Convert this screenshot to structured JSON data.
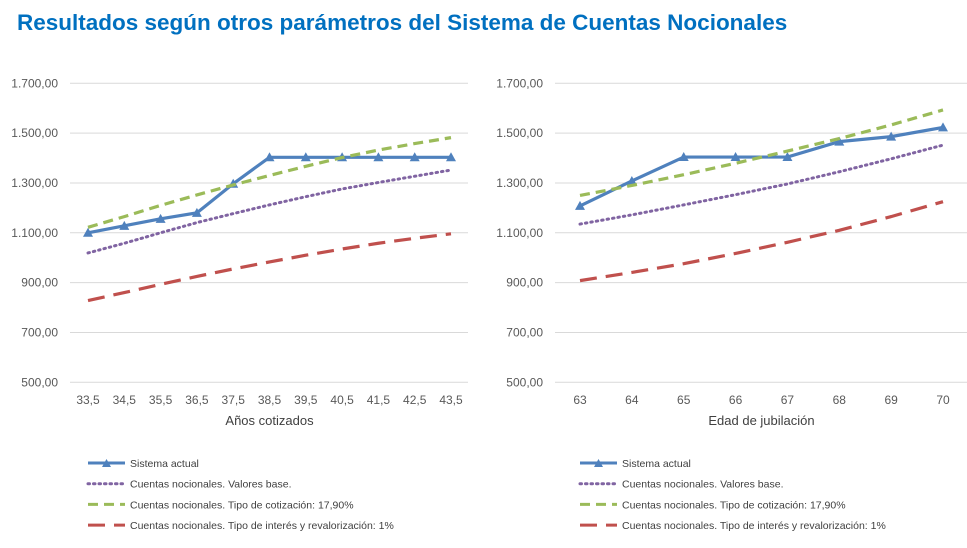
{
  "title": "Resultados según otros parámetros del Sistema de Cuentas Nocionales",
  "chart_data": [
    {
      "type": "line",
      "xlabel": "Años cotizados",
      "ylabel": "",
      "categories": [
        "33,5",
        "34,5",
        "35,5",
        "36,5",
        "37,5",
        "38,5",
        "39,5",
        "40,5",
        "41,5",
        "42,5",
        "43,5"
      ],
      "ylim": [
        500,
        1700
      ],
      "yticks": [
        "500,00",
        "700,00",
        "900,00",
        "1.100,00",
        "1.300,00",
        "1.500,00",
        "1.700,00"
      ],
      "grid": true,
      "legend_position": "bottom",
      "series": [
        {
          "name": "Sistema actual",
          "color": "#4F81BD",
          "style": "solid-triangle",
          "values": [
            1100,
            1128,
            1156,
            1180,
            1297,
            1403,
            1403,
            1403,
            1403,
            1403,
            1403
          ]
        },
        {
          "name": "Cuentas nocionales. Valores base.",
          "color": "#8064A2",
          "style": "dotted",
          "values": [
            1019,
            1058,
            1100,
            1141,
            1177,
            1212,
            1245,
            1276,
            1302,
            1327,
            1352
          ]
        },
        {
          "name": "Cuentas nocionales. Tipo de cotización: 17,90%",
          "color": "#9BBB59",
          "style": "dashed",
          "values": [
            1122,
            1165,
            1210,
            1252,
            1292,
            1330,
            1367,
            1402,
            1432,
            1458,
            1482
          ]
        },
        {
          "name": "Cuentas nocionales. Tipo de interés y revalorización: 1%",
          "color": "#C0504D",
          "style": "long-dashed",
          "values": [
            828,
            860,
            893,
            925,
            955,
            983,
            1010,
            1035,
            1058,
            1078,
            1096
          ]
        }
      ]
    },
    {
      "type": "line",
      "xlabel": "Edad de jubilación",
      "ylabel": "",
      "categories": [
        "63",
        "64",
        "65",
        "66",
        "67",
        "68",
        "69",
        "70"
      ],
      "ylim": [
        500,
        1700
      ],
      "yticks": [
        "500,00",
        "700,00",
        "900,00",
        "1.100,00",
        "1.300,00",
        "1.500,00",
        "1.700,00"
      ],
      "grid": true,
      "legend_position": "bottom",
      "series": [
        {
          "name": "Sistema actual",
          "color": "#4F81BD",
          "style": "solid-triangle",
          "values": [
            1208,
            1308,
            1404,
            1404,
            1404,
            1466,
            1486,
            1523
          ]
        },
        {
          "name": "Cuentas nocionales. Valores base.",
          "color": "#8064A2",
          "style": "dotted",
          "values": [
            1135,
            1172,
            1212,
            1253,
            1296,
            1345,
            1397,
            1452
          ]
        },
        {
          "name": "Cuentas nocionales. Tipo de cotización: 17,90%",
          "color": "#9BBB59",
          "style": "dashed",
          "values": [
            1250,
            1290,
            1333,
            1379,
            1428,
            1478,
            1533,
            1593
          ]
        },
        {
          "name": "Cuentas nocionales. Tipo de interés y revalorización: 1%",
          "color": "#C0504D",
          "style": "long-dashed",
          "values": [
            908,
            941,
            976,
            1017,
            1062,
            1110,
            1165,
            1225
          ]
        }
      ]
    }
  ]
}
